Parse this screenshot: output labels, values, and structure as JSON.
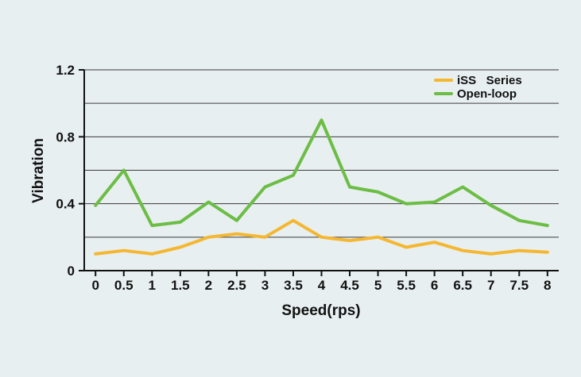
{
  "chart_data": {
    "type": "line",
    "title": "",
    "xlabel": "Speed(rps)",
    "ylabel": "Vibration",
    "x": [
      0,
      0.5,
      1,
      1.5,
      2,
      2.5,
      3,
      3.5,
      4,
      4.5,
      5,
      5.5,
      6,
      6.5,
      7,
      7.5,
      8
    ],
    "x_tick_labels": [
      "0",
      "0.5",
      "1",
      "1.5",
      "2",
      "2.5",
      "3",
      "3.5",
      "4",
      "4.5",
      "5",
      "5.5",
      "6",
      "6.5",
      "7",
      "7.5",
      "8"
    ],
    "y_tick_labels": [
      "0",
      "0.4",
      "0.8",
      "1.2"
    ],
    "y_ticks": [
      0,
      0.4,
      0.8,
      1.2
    ],
    "grid_lines": [
      0.2,
      0.4,
      0.6,
      0.8,
      1.0,
      1.2
    ],
    "xlim": [
      -0.2,
      8.2
    ],
    "ylim": [
      0,
      1.2
    ],
    "grid": true,
    "legend_position": "top-right",
    "series": [
      {
        "name": "iSS   Series",
        "color": "#f5b731",
        "values": [
          0.1,
          0.12,
          0.1,
          0.14,
          0.2,
          0.22,
          0.2,
          0.3,
          0.2,
          0.18,
          0.2,
          0.14,
          0.17,
          0.12,
          0.1,
          0.12,
          0.11
        ]
      },
      {
        "name": "Open-loop",
        "color": "#6cbd45",
        "values": [
          0.39,
          0.6,
          0.27,
          0.29,
          0.41,
          0.3,
          0.5,
          0.57,
          0.9,
          0.5,
          0.47,
          0.4,
          0.41,
          0.5,
          0.39,
          0.3,
          0.27
        ]
      }
    ]
  }
}
